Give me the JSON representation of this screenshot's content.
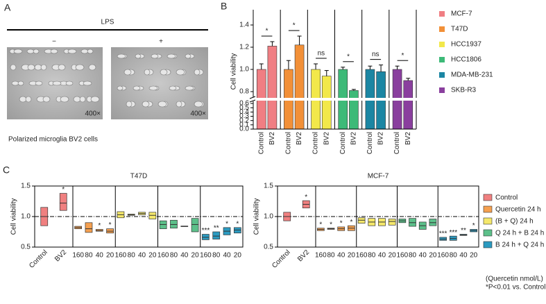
{
  "panel_a": {
    "label": "A",
    "treatment": "LPS",
    "conditions": [
      "−",
      "+"
    ],
    "magnification": "400×",
    "caption": "Polarized microglia BV2 cells"
  },
  "chart_data": [
    {
      "type": "bar",
      "panel": "B",
      "ylabel": "Cell viability",
      "categories": [
        "Control",
        "BV2"
      ],
      "ylim": [
        0,
        1.5
      ],
      "ybreak": [
        0.65,
        0.75
      ],
      "yticks": [
        {
          "value": 0,
          "label": "0.0"
        },
        0.1,
        0.2,
        0.3,
        0.4,
        0.5,
        0.6,
        0.8,
        {
          "value": 1,
          "label": "1.0"
        },
        1.2,
        1.4
      ],
      "series": [
        {
          "name": "MCF-7",
          "color": "#f07e83",
          "values": [
            1.0,
            1.21
          ],
          "errors": [
            0.05,
            0.04
          ],
          "significance": "*"
        },
        {
          "name": "T47D",
          "color": "#f29038",
          "values": [
            1.0,
            1.22
          ],
          "errors": [
            0.08,
            0.08
          ],
          "significance": "*"
        },
        {
          "name": "HCC1937",
          "color": "#f2e84a",
          "values": [
            1.0,
            0.94
          ],
          "errors": [
            0.05,
            0.05
          ],
          "significance": "ns"
        },
        {
          "name": "HCC1806",
          "color": "#3dba78",
          "values": [
            1.0,
            0.81
          ],
          "errors": [
            0.02,
            0.01
          ],
          "significance": "*"
        },
        {
          "name": "MDA-MB-231",
          "color": "#1b86a3",
          "values": [
            1.0,
            0.98
          ],
          "errors": [
            0.03,
            0.06
          ],
          "significance": "ns"
        },
        {
          "name": "SKB-R3",
          "color": "#8a3f9e",
          "values": [
            1.0,
            0.9
          ],
          "errors": [
            0.03,
            0.02
          ],
          "significance": "*"
        }
      ]
    },
    {
      "type": "box",
      "panel": "C",
      "title": "T47D",
      "ylabel": "Cell viability",
      "ylim": [
        0.5,
        1.5
      ],
      "yticks": [
        0.5,
        {
          "value": 1,
          "label": "1.0"
        },
        1.5
      ],
      "hline": 1,
      "series": [
        {
          "color": "#f08080",
          "categories": [
            "Control",
            "BV2"
          ],
          "low": [
            0.85,
            1.1
          ],
          "median": [
            1.0,
            1.22
          ],
          "high": [
            1.15,
            1.38
          ],
          "significance": [
            null,
            "*"
          ]
        },
        {
          "color": "#f5a050",
          "categories": [
            "160",
            "80",
            "40",
            "20"
          ],
          "low": [
            0.8,
            0.74,
            0.76,
            0.73
          ],
          "median": [
            0.82,
            0.8,
            0.77,
            0.76
          ],
          "high": [
            0.84,
            0.9,
            0.79,
            0.8
          ],
          "significance": [
            null,
            null,
            "*",
            "*"
          ]
        },
        {
          "color": "#f5e86b",
          "categories": [
            "160",
            "80",
            "40",
            "20"
          ],
          "low": [
            0.98,
            1.02,
            1.03,
            0.96
          ],
          "median": [
            1.03,
            1.03,
            1.05,
            1.02
          ],
          "high": [
            1.08,
            1.04,
            1.07,
            1.07
          ],
          "significance": [
            null,
            null,
            null,
            null
          ]
        },
        {
          "color": "#5cc08a",
          "categories": [
            "160",
            "80",
            "40",
            "20"
          ],
          "low": [
            0.8,
            0.81,
            0.835,
            0.75
          ],
          "median": [
            0.87,
            0.87,
            0.84,
            0.87
          ],
          "high": [
            0.93,
            0.94,
            0.845,
            0.97
          ],
          "significance": [
            null,
            null,
            null,
            null
          ]
        },
        {
          "color": "#2b9ac0",
          "categories": [
            "160",
            "80",
            "40",
            "20"
          ],
          "low": [
            0.62,
            0.63,
            0.7,
            0.73
          ],
          "median": [
            0.66,
            0.68,
            0.76,
            0.78
          ],
          "high": [
            0.71,
            0.75,
            0.82,
            0.82
          ],
          "significance": [
            "***",
            "**",
            "*",
            "*"
          ]
        }
      ]
    },
    {
      "type": "box",
      "title": "MCF-7",
      "ylabel": "Cell viability",
      "ylim": [
        0.5,
        1.5
      ],
      "yticks": [
        0.5,
        {
          "value": 1,
          "label": "1.0"
        },
        1.5
      ],
      "hline": 1,
      "notes": [
        "(Quercetin nmol/L)",
        "*P<0.01 vs. Control"
      ],
      "series": [
        {
          "name": "Control",
          "color": "#f08080",
          "categories": [
            "Control",
            "BV2"
          ],
          "low": [
            0.93,
            1.14
          ],
          "median": [
            1.0,
            1.2
          ],
          "high": [
            1.07,
            1.26
          ],
          "significance": [
            null,
            "*"
          ]
        },
        {
          "name": "Quercetin 24 h",
          "color": "#f5a050",
          "categories": [
            "160",
            "80",
            "40",
            "20"
          ],
          "low": [
            0.77,
            0.79,
            0.77,
            0.77
          ],
          "median": [
            0.79,
            0.8,
            0.8,
            0.81
          ],
          "high": [
            0.81,
            0.81,
            0.83,
            0.85
          ],
          "significance": [
            "*",
            "*",
            "*",
            "*"
          ]
        },
        {
          "name": "(B + Q) 24 h",
          "color": "#f5e86b",
          "categories": [
            "160",
            "80",
            "40",
            "20"
          ],
          "low": [
            0.89,
            0.85,
            0.85,
            0.86
          ],
          "median": [
            0.94,
            0.91,
            0.91,
            0.92
          ],
          "high": [
            0.98,
            0.97,
            0.97,
            0.96
          ],
          "significance": [
            null,
            null,
            null,
            null
          ]
        },
        {
          "name": "Q 24 h + B 24 h",
          "color": "#5cc08a",
          "categories": [
            "160",
            "80",
            "40",
            "20"
          ],
          "low": [
            0.9,
            0.84,
            0.79,
            0.85
          ],
          "median": [
            0.93,
            0.9,
            0.85,
            0.9
          ],
          "high": [
            0.96,
            0.97,
            0.91,
            0.96
          ],
          "significance": [
            null,
            null,
            null,
            null
          ]
        },
        {
          "name": "B 24 h + Q 24 h",
          "color": "#2b9ac0",
          "categories": [
            "160",
            "80",
            "40",
            "20"
          ],
          "low": [
            0.61,
            0.61,
            0.69,
            0.75
          ],
          "median": [
            0.63,
            0.64,
            0.7,
            0.77
          ],
          "high": [
            0.66,
            0.68,
            0.71,
            0.79
          ],
          "significance": [
            "***",
            "***",
            "**",
            "*"
          ]
        }
      ]
    }
  ]
}
